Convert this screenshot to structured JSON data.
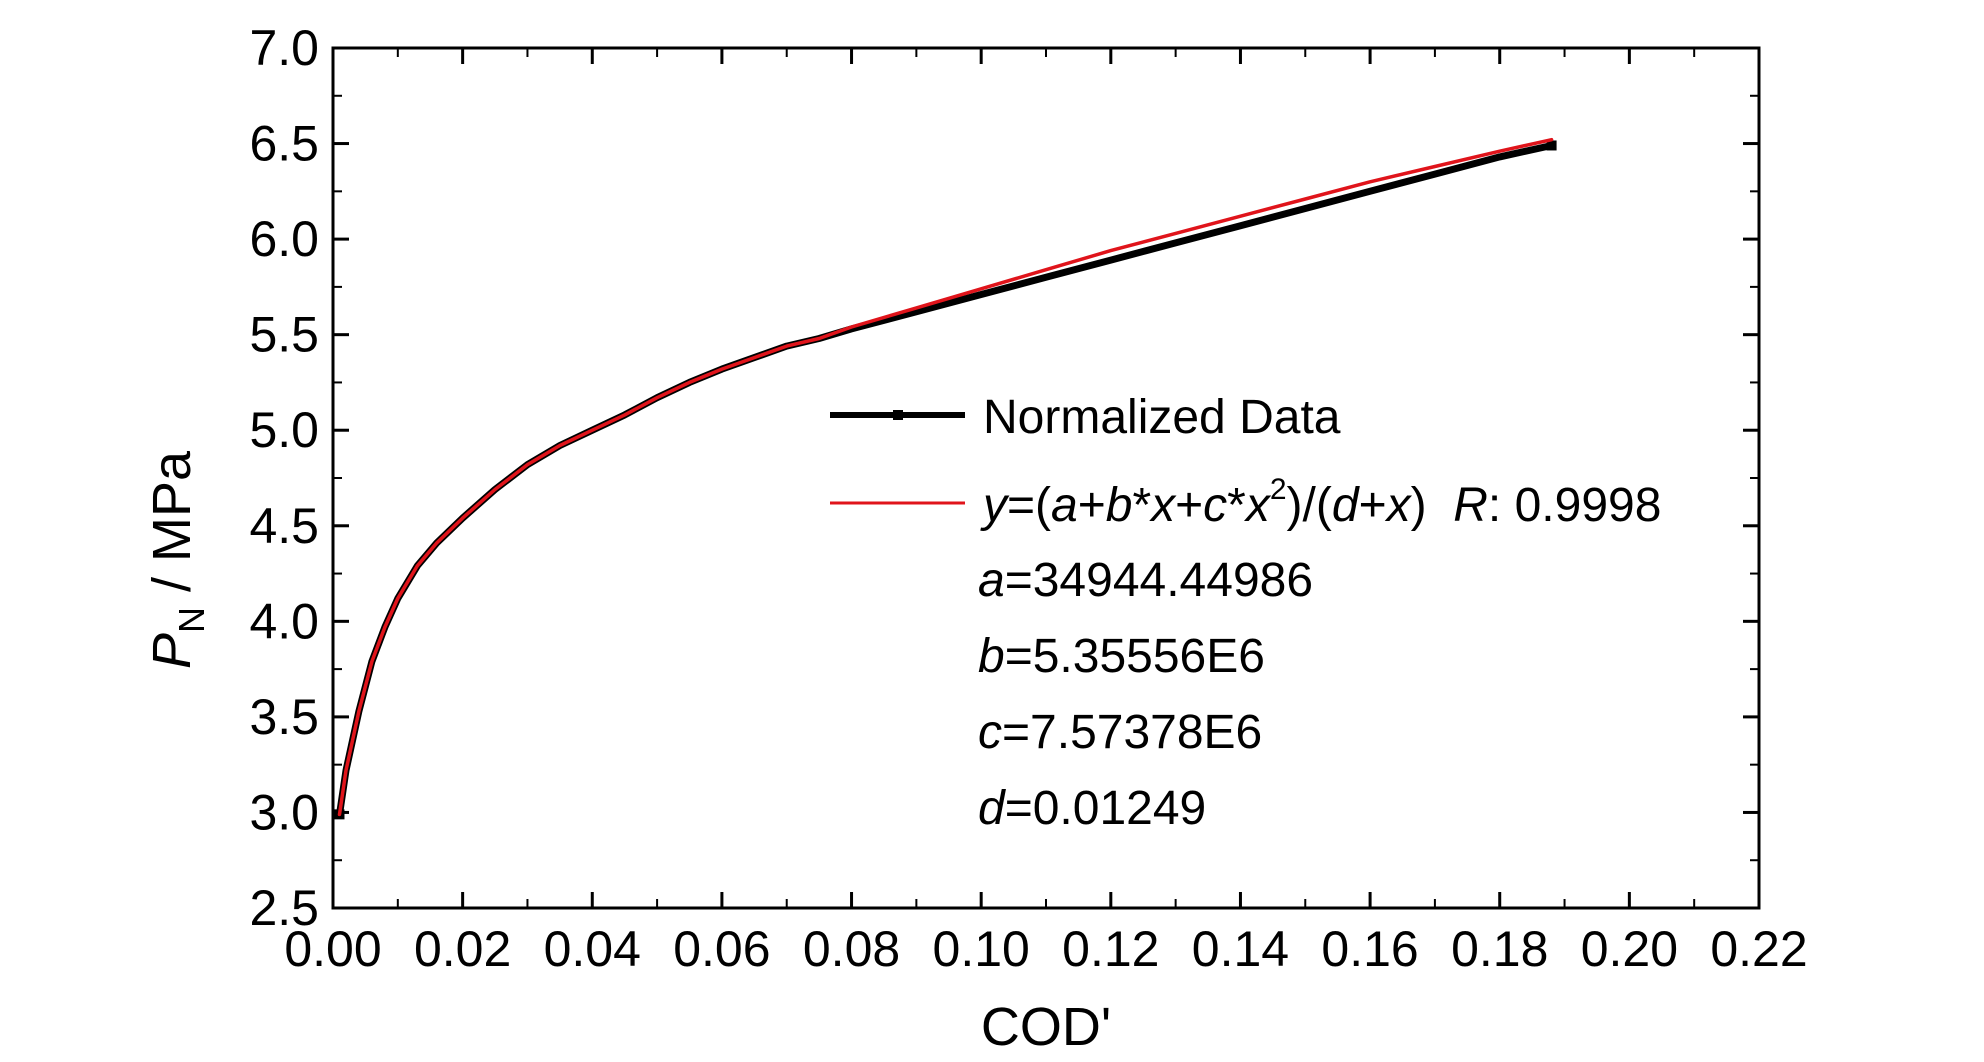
{
  "chart_data": {
    "type": "line",
    "xlabel": "COD'",
    "ylabel_main": "P",
    "ylabel_sub": "N",
    "ylabel_unit": " / MPa",
    "xlim": [
      0,
      0.22
    ],
    "ylim": [
      2.5,
      7.0
    ],
    "x_ticks": [
      0.0,
      0.02,
      0.04,
      0.06,
      0.08,
      0.1,
      0.12,
      0.14,
      0.16,
      0.18,
      0.2,
      0.22
    ],
    "x_tick_labels": [
      "0.00",
      "0.02",
      "0.04",
      "0.06",
      "0.08",
      "0.10",
      "0.12",
      "0.14",
      "0.16",
      "0.18",
      "0.20",
      "0.22"
    ],
    "y_ticks": [
      2.5,
      3.0,
      3.5,
      4.0,
      4.5,
      5.0,
      5.5,
      6.0,
      6.5,
      7.0
    ],
    "y_tick_labels": [
      "2.5",
      "3.0",
      "3.5",
      "4.0",
      "4.5",
      "5.0",
      "5.5",
      "6.0",
      "6.5",
      "7.0"
    ],
    "grid": false,
    "legend_position": "center-right",
    "series": [
      {
        "name": "Normalized Data",
        "color": "#000000",
        "x": [
          0.001,
          0.002,
          0.004,
          0.006,
          0.008,
          0.01,
          0.013,
          0.016,
          0.02,
          0.025,
          0.03,
          0.035,
          0.04,
          0.045,
          0.05,
          0.055,
          0.06,
          0.065,
          0.07,
          0.075,
          0.08,
          0.09,
          0.1,
          0.11,
          0.12,
          0.13,
          0.14,
          0.15,
          0.16,
          0.17,
          0.18,
          0.188
        ],
        "y": [
          2.99,
          3.22,
          3.53,
          3.79,
          3.97,
          4.12,
          4.29,
          4.41,
          4.54,
          4.69,
          4.82,
          4.92,
          5.0,
          5.08,
          5.17,
          5.25,
          5.32,
          5.38,
          5.44,
          5.48,
          5.53,
          5.62,
          5.71,
          5.8,
          5.89,
          5.98,
          6.07,
          6.16,
          6.25,
          6.34,
          6.43,
          6.49
        ]
      },
      {
        "name": "y=(a+b*x+c*x²)/(d+x)  R: 0.9998",
        "color": "#e0141b",
        "x": [
          0.001,
          0.002,
          0.004,
          0.006,
          0.008,
          0.01,
          0.013,
          0.016,
          0.02,
          0.025,
          0.03,
          0.035,
          0.04,
          0.045,
          0.05,
          0.055,
          0.06,
          0.065,
          0.07,
          0.075,
          0.08,
          0.09,
          0.1,
          0.11,
          0.12,
          0.13,
          0.14,
          0.15,
          0.16,
          0.17,
          0.18,
          0.188
        ],
        "y": [
          2.99,
          3.22,
          3.53,
          3.79,
          3.97,
          4.12,
          4.29,
          4.41,
          4.54,
          4.69,
          4.82,
          4.92,
          5.0,
          5.08,
          5.17,
          5.25,
          5.32,
          5.38,
          5.44,
          5.48,
          5.54,
          5.64,
          5.74,
          5.84,
          5.94,
          6.03,
          6.12,
          6.21,
          6.3,
          6.38,
          6.46,
          6.52
        ]
      }
    ],
    "legend": {
      "data_label": "Normalized Data",
      "fit_pre": "y",
      "fit_eq1": "=(",
      "fit_a": "a",
      "fit_eq2": "+",
      "fit_b": "b",
      "fit_eq3": "*",
      "fit_x1": "x",
      "fit_eq4": "+",
      "fit_c": "c",
      "fit_eq5": "*",
      "fit_x2": "x",
      "fit_exp": "2",
      "fit_eq6": ")/(",
      "fit_d": "d",
      "fit_eq7": "+",
      "fit_x3": "x",
      "fit_eq8": ")  ",
      "fit_R": "R",
      "fit_R_val": ": 0.9998"
    },
    "params": [
      {
        "name": "a",
        "value": "=34944.44986"
      },
      {
        "name": "b",
        "value": "=5.35556E6"
      },
      {
        "name": "c",
        "value": "=7.57378E6"
      },
      {
        "name": "d",
        "value": "=0.01249"
      }
    ]
  }
}
